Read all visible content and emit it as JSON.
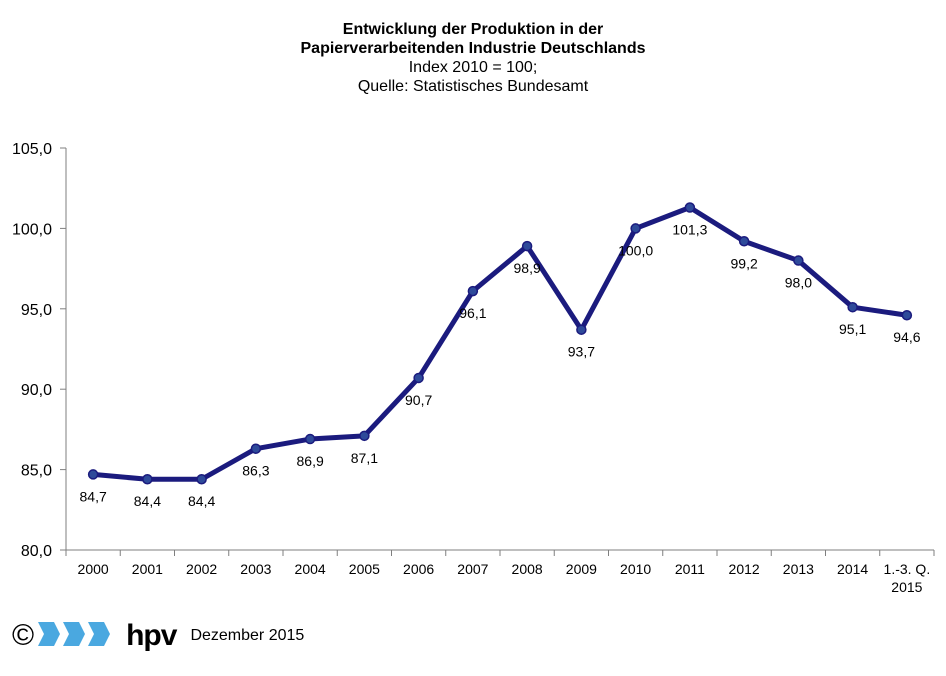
{
  "header": {
    "title_line1": "Entwicklung der Produktion in der",
    "title_line2": "Papierverarbeitenden Industrie Deutschlands",
    "subtitle_line1": "Index 2010 = 100;",
    "subtitle_line2": "Quelle: Statistisches Bundesamt"
  },
  "chart_data": {
    "type": "line",
    "title": "Entwicklung der Produktion in der Papierverarbeitenden Industrie Deutschlands",
    "subtitle": "Index 2010 = 100; Quelle: Statistisches Bundesamt",
    "categories": [
      "2000",
      "2001",
      "2002",
      "2003",
      "2004",
      "2005",
      "2006",
      "2007",
      "2008",
      "2009",
      "2010",
      "2011",
      "2012",
      "2013",
      "2014",
      "1.-3. Q. 2015"
    ],
    "category_lines": [
      [
        "2000"
      ],
      [
        "2001"
      ],
      [
        "2002"
      ],
      [
        "2003"
      ],
      [
        "2004"
      ],
      [
        "2005"
      ],
      [
        "2006"
      ],
      [
        "2007"
      ],
      [
        "2008"
      ],
      [
        "2009"
      ],
      [
        "2010"
      ],
      [
        "2011"
      ],
      [
        "2012"
      ],
      [
        "2013"
      ],
      [
        "2014"
      ],
      [
        "1.-3. Q.",
        "2015"
      ]
    ],
    "values": [
      84.7,
      84.4,
      84.4,
      86.3,
      86.9,
      87.1,
      90.7,
      96.1,
      98.9,
      93.7,
      100.0,
      101.3,
      99.2,
      98.0,
      95.1,
      94.6
    ],
    "value_labels": [
      "84,7",
      "84,4",
      "84,4",
      "86,3",
      "86,9",
      "87,1",
      "90,7",
      "96,1",
      "98,9",
      "93,7",
      "100,0",
      "101,3",
      "99,2",
      "98,0",
      "95,1",
      "94,6"
    ],
    "ylim": [
      80,
      105
    ],
    "yticks": [
      80,
      85,
      90,
      95,
      100,
      105
    ],
    "ytick_labels": [
      "80,0",
      "85,0",
      "90,0",
      "95,0",
      "100,0",
      "105,0"
    ],
    "xlabel": "",
    "ylabel": "",
    "grid": false,
    "legend": "none",
    "line_color": "#1b1b7e",
    "marker_color": "#2e4a9a"
  },
  "footer": {
    "copyright_symbol": "©",
    "brand": "hpv",
    "date": "Dezember 2015"
  },
  "colors": {
    "logo_blue": "#4aa8e0"
  }
}
